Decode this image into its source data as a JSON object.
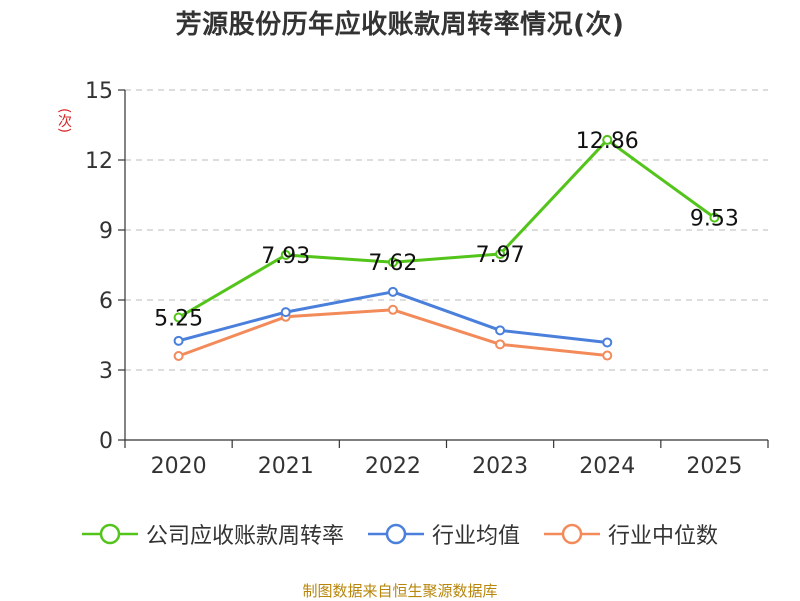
{
  "chart_data": {
    "type": "line",
    "title": "芳源股份历年应收账款周转率情况(次)",
    "ylabel": "(次)",
    "xlabel": "",
    "categories": [
      "2020",
      "2021",
      "2022",
      "2023",
      "2024",
      "2025"
    ],
    "ylim": [
      0,
      15
    ],
    "yticks": [
      0,
      3,
      6,
      9,
      12,
      15
    ],
    "grid": true,
    "series": [
      {
        "name": "公司应收账款周转率",
        "color": "#52c41a",
        "values": [
          5.25,
          7.93,
          7.62,
          7.97,
          12.86,
          9.53
        ],
        "labels": [
          "5.25",
          "7.93",
          "7.62",
          "7.97",
          "12.86",
          "9.53"
        ]
      },
      {
        "name": "行业均值",
        "color": "#4a7fdb",
        "values": [
          4.25,
          5.48,
          6.35,
          4.7,
          4.18,
          null
        ],
        "labels": []
      },
      {
        "name": "行业中位数",
        "color": "#f38a5a",
        "values": [
          3.6,
          5.28,
          5.58,
          4.1,
          3.62,
          null
        ],
        "labels": []
      }
    ],
    "legend_position": "bottom"
  },
  "source": "制图数据来自恒生聚源数据库"
}
